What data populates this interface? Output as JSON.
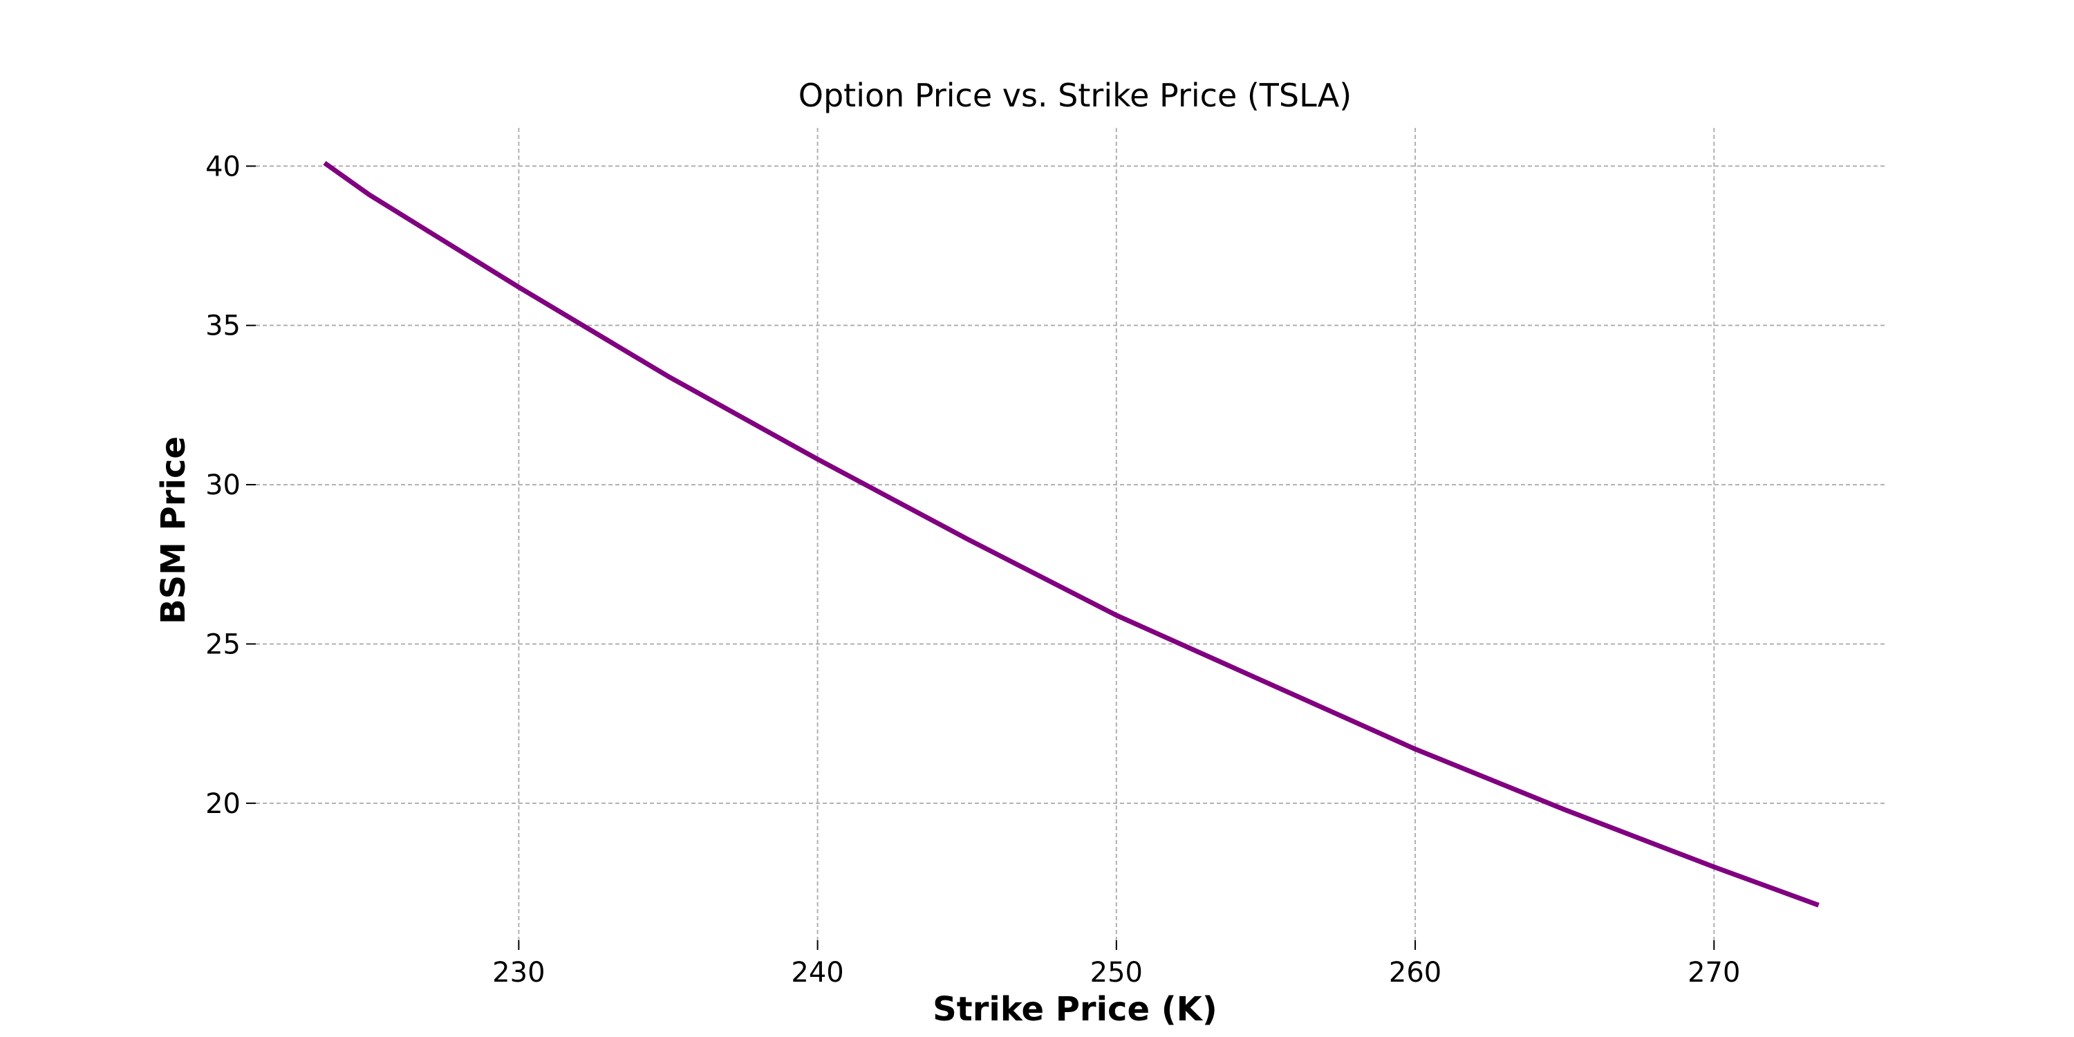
{
  "chart_data": {
    "type": "line",
    "title": "Option Price vs. Strike Price (TSLA)",
    "xlabel": "Strike Price (K)",
    "ylabel": "BSM Price",
    "xlim": [
      221.2,
      275.8
    ],
    "ylim": [
      15.7,
      41.2
    ],
    "xticks": [
      230,
      240,
      250,
      260,
      270
    ],
    "yticks": [
      20,
      25,
      30,
      35,
      40
    ],
    "grid": true,
    "legend": "none",
    "color": "#800080",
    "series": [
      {
        "x": [
          223.5,
          225,
          230,
          235,
          240,
          245,
          250,
          255,
          260,
          265,
          270,
          273.5
        ],
        "y": [
          40.1,
          39.1,
          36.2,
          33.4,
          30.8,
          28.3,
          25.9,
          23.8,
          21.7,
          19.8,
          18.0,
          16.8
        ]
      }
    ]
  }
}
